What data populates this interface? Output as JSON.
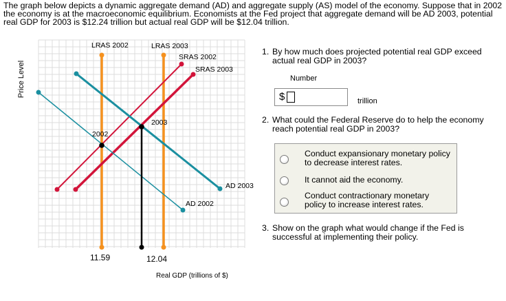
{
  "intro": "The graph below depicts a dynamic aggregate demand (AD) and aggregate supply (AS) model of the economy. Suppose that in 2002 the economy is at the macroeconomic equilibrium. Economists at the Fed project that aggregate demand will be AD 2003, potential real GDP for 2003 is $12.24 trillion but actual real GDP will be $12.04 trillion.",
  "chart_data": {
    "type": "line",
    "xlabel": "Real GDP (trillions of $)",
    "ylabel": "Price Level",
    "grid": true,
    "x_tick_labels": [
      "11.59",
      "12.04"
    ],
    "curves": [
      {
        "name": "LRAS 2002",
        "color": "#f5911e",
        "kind": "vertical"
      },
      {
        "name": "LRAS 2003",
        "color": "#f5911e",
        "kind": "vertical"
      },
      {
        "name": "SRAS 2002",
        "color": "#d2143a",
        "kind": "upward"
      },
      {
        "name": "SRAS 2003",
        "color": "#d2143a",
        "kind": "upward"
      },
      {
        "name": "AD 2002",
        "color": "#1a8fa0",
        "kind": "downward"
      },
      {
        "name": "AD 2003",
        "color": "#1a8fa0",
        "kind": "downward"
      }
    ],
    "points": [
      {
        "label": "2002"
      },
      {
        "label": "2003"
      }
    ]
  },
  "q1": {
    "number": "1.",
    "text": "By how much does projected potential real GDP exceed actual real GDP in 2003?",
    "input_label": "Number",
    "currency": "$",
    "value": "",
    "unit": "trillion"
  },
  "q2": {
    "number": "2.",
    "text": "What could the Federal Reserve do to help the economy reach potential real GDP in 2003?",
    "options": [
      "Conduct expansionary monetary policy to decrease interest rates.",
      "It cannot aid the economy.",
      "Conduct contractionary monetary policy to increase interest rates."
    ]
  },
  "q3": {
    "number": "3.",
    "text": "Show on the graph what would change if the Fed is successful at implementing their policy."
  },
  "colors": {
    "lras": "#f5911e",
    "sras": "#d2143a",
    "ad": "#1a8fa0",
    "grid": "#dcdcdc",
    "choice_bg": "#f2f2ea"
  }
}
